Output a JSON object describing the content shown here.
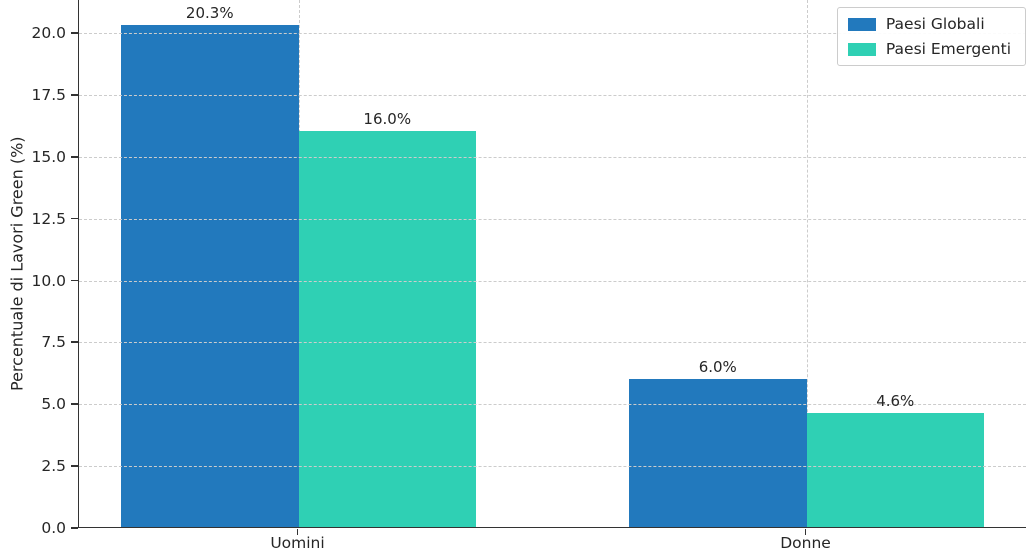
{
  "chart_data": {
    "type": "bar",
    "title": "",
    "categories": [
      "Uomini",
      "Donne"
    ],
    "series": [
      {
        "name": "Paesi Globali",
        "color": "#2279bd",
        "values": [
          20.3,
          6.0
        ],
        "value_labels": [
          "20.3%",
          "6.0%"
        ]
      },
      {
        "name": "Paesi Emergenti",
        "color": "#2fd0b4",
        "values": [
          16.0,
          4.6
        ],
        "value_labels": [
          "16.0%",
          "4.6%"
        ]
      }
    ],
    "xlabel": "",
    "ylabel": "Percentuale di Lavori Green (%)",
    "ylim": [
      0,
      21.3
    ],
    "yticks": [
      0.0,
      2.5,
      5.0,
      7.5,
      10.0,
      12.5,
      15.0,
      17.5,
      20.0
    ],
    "ytick_labels": [
      "0.0",
      "2.5",
      "5.0",
      "7.5",
      "10.0",
      "12.5",
      "15.0",
      "17.5",
      "20.0"
    ],
    "grid": "dashed, horizontal at yticks and vertical at group centers, drawn above bars",
    "legend_position": "upper right",
    "colors": {
      "axis_spine": "#333333",
      "gridline": "#cccccc",
      "text": "#262626",
      "background": "#ffffff"
    }
  }
}
